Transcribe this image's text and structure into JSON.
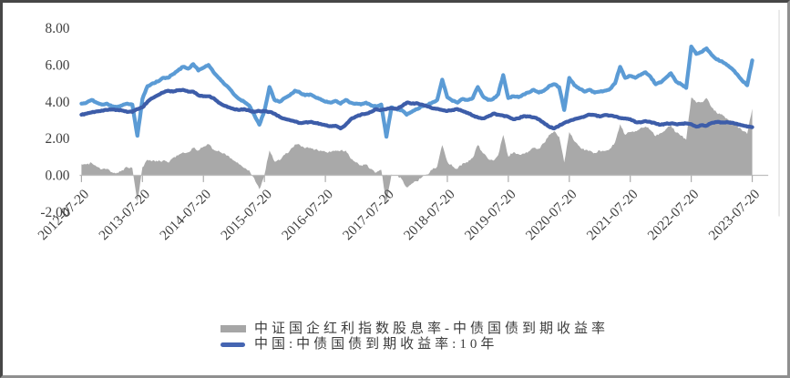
{
  "figure": {
    "background_color": "#ffffff",
    "frame_border_color": "#474747"
  },
  "y_axis": {
    "tick_labels": [
      "8.00",
      "6.00",
      "4.00",
      "2.00",
      "0.00",
      "-2.00"
    ],
    "tick_values": [
      8,
      6,
      4,
      2,
      0,
      -2
    ],
    "range": [
      -2,
      8
    ],
    "text_color": "#3f3f3f"
  },
  "x_axis": {
    "tick_labels": [
      "2012-07-20",
      "2013-07-20",
      "2014-07-20",
      "2015-07-20",
      "2016-07-20",
      "2017-07-20",
      "2018-07-20",
      "2019-07-20",
      "2020-07-20",
      "2021-07-20",
      "2022-07-20",
      "2023-07-20"
    ],
    "label_rotation_deg": -45,
    "axis_line_color": "#bfbfbf",
    "tick_color": "#ababab"
  },
  "legend": {
    "position": "bottom",
    "items": [
      {
        "label": "中证国企红利指数股息率-中债国债到期收益率",
        "swatch": "area",
        "color": "#a6a6a6"
      },
      {
        "label": "中国:中债国债到期收益率:10年",
        "swatch": "line",
        "color": "#4565b2"
      }
    ]
  },
  "chart_data": {
    "type": "line",
    "title": "",
    "xlabel": "",
    "ylabel": "",
    "grid": false,
    "ylim": [
      -2,
      8
    ],
    "x_start": "2012-07",
    "x_step": "1 month",
    "x_point_count": 133,
    "x_tick_labels": [
      "2012-07-20",
      "2013-07-20",
      "2014-07-20",
      "2015-07-20",
      "2016-07-20",
      "2017-07-20",
      "2018-07-20",
      "2019-07-20",
      "2020-07-20",
      "2021-07-20",
      "2022-07-20",
      "2023-07-20"
    ],
    "legend_position": "bottom",
    "series": [
      {
        "name": "中证国企红利指数股息率 (light blue line, no visible legend entry)",
        "type": "line",
        "color": "#5b9bd5",
        "legend_visible": false,
        "values": [
          3.9,
          3.95,
          4.1,
          3.95,
          3.85,
          3.9,
          3.75,
          3.7,
          3.8,
          3.9,
          3.85,
          2.15,
          4.15,
          4.85,
          5.0,
          5.1,
          5.3,
          5.3,
          5.5,
          5.7,
          5.9,
          5.8,
          6.05,
          5.7,
          5.85,
          6.0,
          5.6,
          5.3,
          5.0,
          4.75,
          4.4,
          4.15,
          4.0,
          3.8,
          3.3,
          2.75,
          3.5,
          4.8,
          4.1,
          4.0,
          4.2,
          4.35,
          4.6,
          4.5,
          4.35,
          4.4,
          4.25,
          4.15,
          4.0,
          3.95,
          4.05,
          3.9,
          4.1,
          3.95,
          3.9,
          3.85,
          3.95,
          3.8,
          3.75,
          3.85,
          2.1,
          3.7,
          3.6,
          3.55,
          3.3,
          3.45,
          3.6,
          3.75,
          3.8,
          3.95,
          4.1,
          5.2,
          4.25,
          4.05,
          3.95,
          4.15,
          4.1,
          4.2,
          4.8,
          4.3,
          4.1,
          4.15,
          4.4,
          5.45,
          4.2,
          4.3,
          4.25,
          4.4,
          4.5,
          4.65,
          4.5,
          4.6,
          4.85,
          4.95,
          4.8,
          3.55,
          5.3,
          4.9,
          4.7,
          4.55,
          4.65,
          4.5,
          4.55,
          4.6,
          4.7,
          5.0,
          5.9,
          5.3,
          5.4,
          5.3,
          5.45,
          5.6,
          5.35,
          4.95,
          5.05,
          5.3,
          5.55,
          5.1,
          4.95,
          4.75,
          7.0,
          6.6,
          6.7,
          6.9,
          6.55,
          6.3,
          6.2,
          6.0,
          5.8,
          5.5,
          5.15,
          4.9,
          6.25
        ]
      },
      {
        "name": "中国:中债国债到期收益率:10年",
        "type": "line",
        "color": "#3d5da9",
        "legend_visible": true,
        "values": [
          3.3,
          3.35,
          3.42,
          3.48,
          3.52,
          3.55,
          3.58,
          3.56,
          3.52,
          3.45,
          3.45,
          3.6,
          3.7,
          4.0,
          4.2,
          4.35,
          4.5,
          4.6,
          4.55,
          4.62,
          4.65,
          4.55,
          4.55,
          4.35,
          4.3,
          4.3,
          4.2,
          3.95,
          3.8,
          3.7,
          3.6,
          3.55,
          3.6,
          3.52,
          3.45,
          3.5,
          3.48,
          3.45,
          3.35,
          3.18,
          3.08,
          3.0,
          2.92,
          2.85,
          2.88,
          2.9,
          2.85,
          2.8,
          2.72,
          2.68,
          2.7,
          2.55,
          2.75,
          3.05,
          3.2,
          3.3,
          3.35,
          3.45,
          3.6,
          3.55,
          3.6,
          3.65,
          3.62,
          3.75,
          3.95,
          3.9,
          3.92,
          3.85,
          3.75,
          3.65,
          3.62,
          3.55,
          3.5,
          3.55,
          3.6,
          3.5,
          3.4,
          3.25,
          3.15,
          3.1,
          3.2,
          3.35,
          3.3,
          3.25,
          3.18,
          3.05,
          3.1,
          3.22,
          3.2,
          3.15,
          3.05,
          2.85,
          2.65,
          2.55,
          2.7,
          2.85,
          2.95,
          3.05,
          3.12,
          3.2,
          3.3,
          3.28,
          3.2,
          3.28,
          3.25,
          3.2,
          3.12,
          3.1,
          3.05,
          2.9,
          2.88,
          2.95,
          2.9,
          2.82,
          2.75,
          2.8,
          2.82,
          2.78,
          2.8,
          2.82,
          2.78,
          2.65,
          2.72,
          2.7,
          2.85,
          2.9,
          2.88,
          2.9,
          2.86,
          2.8,
          2.72,
          2.65,
          2.62
        ]
      },
      {
        "name": "中证国企红利指数股息率-中债国债到期收益率",
        "type": "area",
        "color": "#a9a9a9",
        "legend_visible": true,
        "values": [
          0.6,
          0.6,
          0.68,
          0.47,
          0.33,
          0.35,
          0.17,
          0.14,
          0.28,
          0.45,
          0.4,
          -1.45,
          0.45,
          0.85,
          0.8,
          0.75,
          0.8,
          0.7,
          0.95,
          1.08,
          1.25,
          1.25,
          1.5,
          1.35,
          1.55,
          1.7,
          1.4,
          1.35,
          1.2,
          1.05,
          0.8,
          0.6,
          0.4,
          0.28,
          -0.15,
          -0.75,
          0.02,
          1.35,
          0.75,
          0.82,
          1.12,
          1.35,
          1.68,
          1.65,
          1.47,
          1.5,
          1.4,
          1.35,
          1.28,
          1.27,
          1.35,
          1.35,
          1.35,
          0.9,
          0.7,
          0.55,
          0.6,
          0.35,
          0.15,
          0.3,
          -1.5,
          0.05,
          -0.02,
          -0.2,
          -0.65,
          -0.45,
          -0.32,
          -0.1,
          0.05,
          0.3,
          0.48,
          1.65,
          0.75,
          0.5,
          0.35,
          0.65,
          0.7,
          0.95,
          1.65,
          1.2,
          0.9,
          0.8,
          1.1,
          2.2,
          1.02,
          1.25,
          1.15,
          1.18,
          1.3,
          1.5,
          1.45,
          1.75,
          2.2,
          2.4,
          2.1,
          0.7,
          2.35,
          1.85,
          1.58,
          1.35,
          1.35,
          1.22,
          1.35,
          1.32,
          1.45,
          1.8,
          2.78,
          2.2,
          2.35,
          2.4,
          2.57,
          2.65,
          2.45,
          2.13,
          2.3,
          2.5,
          2.73,
          2.32,
          2.15,
          1.93,
          4.22,
          3.95,
          3.98,
          4.2,
          3.7,
          3.4,
          3.32,
          3.1,
          2.94,
          2.7,
          2.43,
          2.25,
          3.63
        ]
      }
    ]
  }
}
